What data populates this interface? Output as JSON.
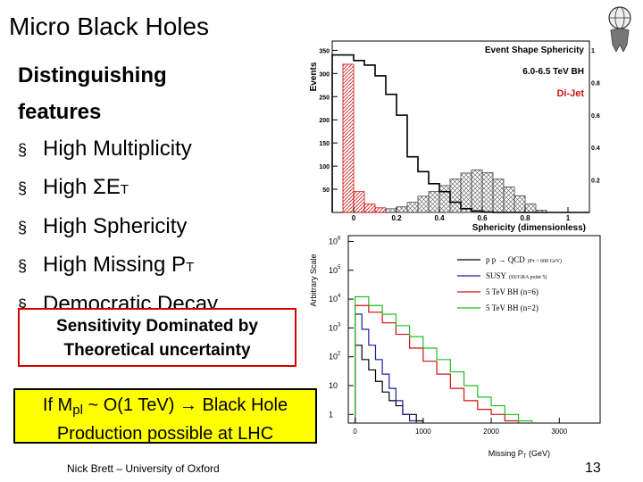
{
  "title": "Micro Black Holes",
  "features": {
    "heading_line1": "Distinguishing",
    "heading_line2": "features",
    "bullet_marker": "§",
    "items": [
      {
        "pre": "High Multiplicity",
        "sub": "",
        "post": ""
      },
      {
        "pre": "High ΣE",
        "sub": "T",
        "post": ""
      },
      {
        "pre": "High Sphericity",
        "sub": "",
        "post": ""
      },
      {
        "pre": "High Missing P",
        "sub": "T",
        "post": ""
      },
      {
        "pre": "Democratic Decay",
        "sub": "",
        "post": ""
      }
    ]
  },
  "sensitivity_box": {
    "line1": "Sensitivity Dominated by",
    "line2": "Theoretical uncertainty"
  },
  "lhc_box": {
    "pre": "If M",
    "sub": "pl",
    "post": " ~ O(1 TeV) → Black Hole",
    "line2": "Production possible at LHC"
  },
  "footer": "Nick Brett – University of Oxford",
  "page_number": "13",
  "colors": {
    "red_box": "#d40000",
    "yellow_box": "#ffff00",
    "qcd": "#000000",
    "susy": "#1e1e96",
    "bh6": "#d01010",
    "bh2": "#20c020"
  },
  "chart_data": [
    {
      "type": "bar",
      "title": "Event Shape Sphericity",
      "subtitle": "6.0-6.5 TeV BH",
      "legend": [
        "Di-Jet"
      ],
      "legend_placement": "top-right",
      "xlabel": "Sphericity (dimensionless)",
      "ylabel": "Events",
      "xlim": [
        -0.1,
        1.1
      ],
      "ylim": [
        0,
        370
      ],
      "xticks": [
        "0",
        "0.2",
        "0.4",
        "0.6",
        "0.8",
        "1"
      ],
      "yticks": [
        "0",
        "50",
        "100",
        "150",
        "200",
        "250",
        "300",
        "350"
      ],
      "y2ticks": [
        "0.2",
        "0.4",
        "0.6",
        "0.8",
        "1"
      ],
      "series": [
        {
          "name": "6.0-6.5 TeV BH",
          "style": "step",
          "x": [
            -0.1,
            -0.05,
            0.0,
            0.05,
            0.1,
            0.15,
            0.2,
            0.25,
            0.3,
            0.35,
            0.4,
            0.45,
            0.5,
            0.55,
            0.6,
            0.65,
            0.7,
            0.75,
            0.8,
            0.85,
            0.9,
            0.95,
            1.0,
            1.05
          ],
          "values": [
            340,
            340,
            328,
            318,
            295,
            255,
            210,
            120,
            88,
            62,
            45,
            22,
            8,
            3,
            1,
            0,
            0,
            0,
            0,
            0,
            0,
            0,
            0,
            0
          ]
        },
        {
          "name": "Di-Jet",
          "style": "hatched",
          "x": [
            -0.1,
            -0.05,
            0.0,
            0.05,
            0.1,
            0.15,
            0.2,
            0.25,
            0.3,
            0.35,
            0.4,
            0.45,
            0.5,
            0.55,
            0.6,
            0.65,
            0.7,
            0.75,
            0.8,
            0.85,
            0.9,
            0.95,
            1.0,
            1.05
          ],
          "values": [
            0,
            320,
            45,
            18,
            10,
            8,
            12,
            22,
            35,
            45,
            58,
            72,
            85,
            92,
            86,
            72,
            55,
            36,
            18,
            5,
            0,
            0,
            0,
            0
          ]
        }
      ]
    },
    {
      "type": "line",
      "style": "step",
      "xlabel": "Missing P",
      "xlabel_sub": "T",
      "xlabel_unit": " (GeV)",
      "ylabel": "Arbitrary Scale",
      "xlim": [
        -100,
        3600
      ],
      "ylim_log10": [
        -0.3,
        6.2
      ],
      "y_scale": "log",
      "xticks": [
        "0",
        "1000",
        "2000",
        "3000"
      ],
      "yticks": [
        {
          "base": "1",
          "exp": ""
        },
        {
          "base": "10",
          "exp": ""
        },
        {
          "base": "10",
          "exp": "2"
        },
        {
          "base": "10",
          "exp": "3"
        },
        {
          "base": "10",
          "exp": "4"
        },
        {
          "base": "10",
          "exp": "5"
        },
        {
          "base": "10",
          "exp": "6"
        }
      ],
      "legend_placement": "top-right",
      "series": [
        {
          "name": "p p → QCD",
          "note": "(Pᴛ > 600 GeV)",
          "color": "#000000",
          "x": [
            0,
            100,
            200,
            300,
            400,
            500,
            600,
            700,
            800,
            900
          ],
          "values": [
            250,
            80,
            35,
            14,
            6,
            3,
            2,
            1,
            1,
            0.6
          ]
        },
        {
          "name": "SUSY",
          "note": "(SUGRA point 5)",
          "color": "#1e1e96",
          "x": [
            0,
            100,
            200,
            300,
            400,
            500,
            600,
            700,
            800
          ],
          "values": [
            3000,
            900,
            250,
            80,
            25,
            8,
            3,
            1,
            0.6
          ]
        },
        {
          "name": "5 TeV BH (n=6)",
          "note": "",
          "color": "#d01010",
          "x": [
            0,
            200,
            400,
            600,
            800,
            1000,
            1200,
            1400,
            1600,
            1800,
            2000,
            2200
          ],
          "values": [
            6000,
            3500,
            1500,
            600,
            200,
            70,
            25,
            8,
            3,
            1.5,
            1,
            0.6
          ]
        },
        {
          "name": "5 TeV BH (n=2)",
          "note": "",
          "color": "#20c020",
          "x": [
            0,
            200,
            400,
            600,
            800,
            1000,
            1200,
            1400,
            1600,
            1800,
            2000,
            2200,
            2400
          ],
          "values": [
            12000,
            6000,
            3000,
            1200,
            500,
            200,
            80,
            30,
            10,
            4,
            2,
            1,
            0.6
          ]
        }
      ]
    }
  ]
}
